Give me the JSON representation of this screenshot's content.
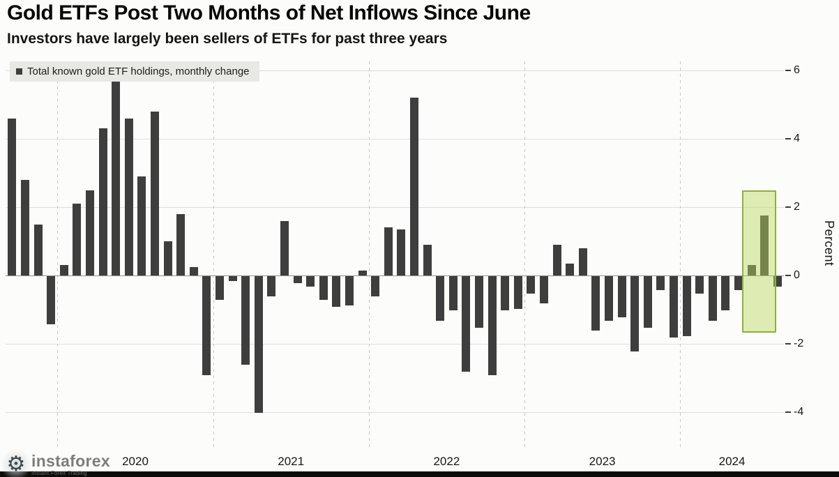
{
  "header": {
    "title": "Gold ETFs Post Two Months of Net Inflows Since June",
    "subtitle": "Investors have largely been sellers of ETFs for past three years"
  },
  "legend": {
    "label": "Total known gold ETF holdings, monthly change",
    "swatch_color": "#3e3e3e"
  },
  "y_axis": {
    "title": "Percent"
  },
  "watermark": {
    "brand": "instaforex",
    "tagline": "Instant Forex Trading"
  },
  "chart_data": {
    "type": "bar",
    "title": "Gold ETFs Post Two Months of Net Inflows Since June",
    "subtitle": "Investors have largely been sellers of ETFs for past three years",
    "series_name": "Total known gold ETF holdings, monthly change",
    "xlabel": "",
    "ylabel": "Percent",
    "yticks": [
      6,
      4,
      2,
      0,
      -2,
      -4
    ],
    "ylim": [
      -5,
      6.3
    ],
    "grid": true,
    "legend_position": "top-left",
    "bar_color": "#3e3e3e",
    "start": {
      "year": 2019,
      "month": 9
    },
    "x_year_labels": [
      "2020",
      "2021",
      "2022",
      "2023",
      "2024"
    ],
    "values": [
      4.6,
      2.8,
      1.5,
      -1.4,
      0.3,
      2.1,
      2.5,
      4.3,
      5.7,
      4.6,
      2.9,
      4.8,
      1.0,
      1.8,
      0.25,
      -2.9,
      -0.7,
      -0.15,
      -2.6,
      -4.0,
      -0.6,
      1.6,
      -0.2,
      -0.3,
      -0.7,
      -0.9,
      -0.85,
      0.15,
      -0.6,
      1.4,
      1.35,
      5.2,
      0.9,
      -1.3,
      -1.0,
      -2.8,
      -1.5,
      -2.9,
      -1.0,
      -0.95,
      -0.5,
      -0.8,
      0.9,
      0.35,
      0.8,
      -1.6,
      -1.3,
      -1.2,
      -2.2,
      -1.5,
      -0.4,
      -1.8,
      -1.75,
      -0.5,
      -1.3,
      -1.0,
      -0.4,
      0.3,
      1.75,
      -0.3
    ],
    "highlight": {
      "start_index": 57,
      "end_index": 58,
      "value_top": 2.5,
      "value_bottom": -1.6,
      "fill": "rgba(187,218,96,0.45)",
      "border": "#8fae3e"
    }
  }
}
